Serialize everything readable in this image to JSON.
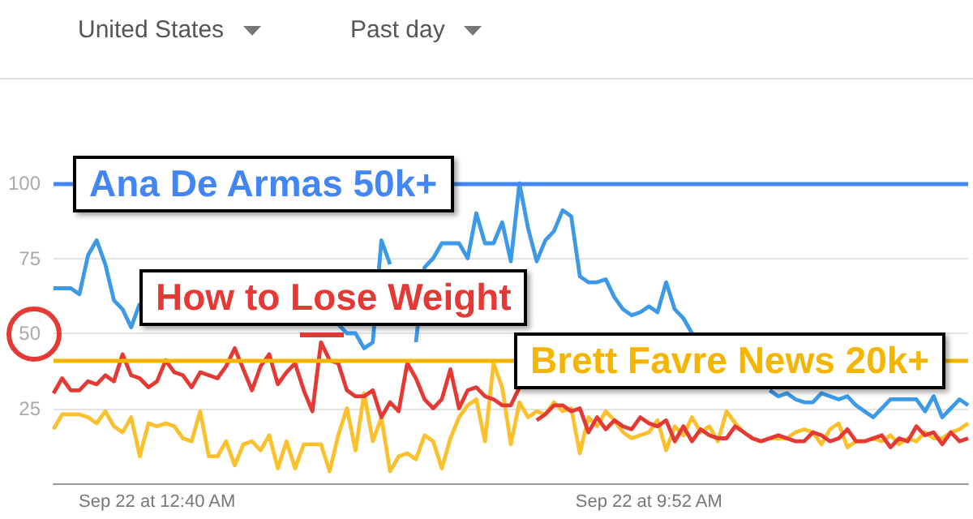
{
  "chart_data": {
    "type": "line",
    "categories": [
      null,
      null,
      null,
      null,
      null,
      null,
      null,
      null,
      null,
      null,
      null,
      null,
      "Sep 22 at 12:40 AM",
      null,
      null,
      null,
      null,
      null,
      null,
      null,
      null,
      null,
      null,
      null,
      null,
      null,
      null,
      null,
      null,
      null,
      null,
      null,
      null,
      null,
      null,
      null,
      null,
      null,
      null,
      null,
      null,
      null,
      null,
      null,
      null,
      null,
      null,
      null,
      null,
      null,
      null,
      null,
      null,
      null,
      null,
      null,
      null,
      null,
      null,
      null,
      null,
      null,
      null,
      null,
      null,
      null,
      null,
      null,
      null,
      "Sep 22 at 9:52 AM",
      null,
      null,
      null,
      null,
      null,
      null,
      null,
      null,
      null,
      null,
      null,
      null,
      null,
      null,
      null,
      null,
      null,
      null,
      null,
      null,
      null,
      null,
      null,
      null,
      null,
      null,
      null,
      null,
      null,
      null,
      null,
      null,
      null,
      null,
      null,
      null,
      null
    ],
    "series": [
      {
        "color": "#3c99e8",
        "values": [
          65,
          65,
          65,
          63,
          76,
          81,
          73,
          61,
          58,
          52,
          60,
          null,
          null,
          null,
          null,
          null,
          null,
          null,
          null,
          null,
          null,
          null,
          null,
          null,
          null,
          null,
          null,
          null,
          null,
          null,
          null,
          null,
          null,
          53,
          50,
          50,
          45,
          47,
          81,
          73,
          null,
          null,
          47,
          72,
          75,
          80,
          80,
          80,
          75,
          90,
          80,
          80,
          87,
          74,
          100,
          85,
          74,
          81,
          84,
          91,
          89,
          69,
          67,
          67,
          68,
          62,
          58,
          56,
          57,
          59,
          57,
          67,
          58,
          55,
          50,
          null,
          null,
          null,
          null,
          null,
          null,
          null,
          null,
          31,
          29,
          30,
          28,
          27,
          27,
          30,
          29,
          28,
          29,
          26,
          24,
          22,
          25,
          28,
          28,
          28,
          28,
          24,
          29,
          22,
          25,
          28,
          26
        ]
      },
      {
        "color": "#e53935",
        "values": [
          30,
          35,
          31,
          31,
          34,
          33,
          36,
          34,
          43,
          36,
          35,
          32,
          34,
          41,
          37,
          36,
          32,
          37,
          36,
          35,
          39,
          45,
          38,
          31,
          39,
          43,
          33,
          37,
          40,
          31,
          24,
          47,
          41,
          40,
          31,
          29,
          29,
          31,
          22,
          27,
          24,
          40,
          35,
          28,
          25,
          28,
          38,
          25,
          31,
          32,
          29,
          28,
          26,
          26,
          32,
          null,
          21,
          23,
          26,
          26,
          24,
          25,
          17,
          22,
          18,
          21,
          19,
          18,
          22,
          20,
          19,
          21,
          14,
          19,
          14,
          18,
          16,
          15,
          15,
          19,
          17,
          15,
          14,
          15,
          16,
          15,
          14,
          14,
          17,
          16,
          14,
          15,
          18,
          14,
          14,
          15,
          16,
          12,
          15,
          14,
          19,
          16,
          17,
          13,
          17,
          14,
          15
        ]
      },
      {
        "color": "#fbc02d",
        "values": [
          18,
          23,
          23,
          23,
          22,
          20,
          24,
          19,
          17,
          22,
          9,
          20,
          19,
          20,
          19,
          15,
          14,
          24,
          9,
          9,
          14,
          6,
          13,
          14,
          11,
          16,
          5,
          14,
          5,
          13,
          13,
          13,
          4,
          16,
          25,
          11,
          30,
          14,
          22,
          4,
          9,
          10,
          8,
          16,
          14,
          5,
          15,
          22,
          26,
          28,
          14,
          40,
          32,
          13,
          27,
          22,
          24,
          23,
          27,
          24,
          25,
          10,
          22,
          19,
          24,
          21,
          17,
          15,
          16,
          17,
          21,
          11,
          19,
          16,
          22,
          17,
          19,
          14,
          24,
          20,
          17,
          15,
          14,
          15,
          15,
          15,
          17,
          18,
          17,
          13,
          18,
          20,
          12,
          14,
          14,
          15,
          14,
          16,
          13,
          15,
          14,
          17,
          15,
          15,
          17,
          18,
          20
        ]
      }
    ],
    "ylim": [
      0,
      100
    ],
    "yticks": [
      25,
      50,
      75,
      100
    ],
    "grid": "y",
    "marker": "none",
    "line_style": "solid",
    "ref_lines": [
      {
        "axis": "y",
        "value": 100,
        "label": "Ana De Armas 50k+",
        "color": "#4285f4"
      },
      {
        "axis": "y",
        "value": 41,
        "label": "Brett Favre News 20k+",
        "color": "#f4b400"
      }
    ],
    "annotations": [
      "United States",
      "Past day",
      "How to Lose Weight"
    ]
  }
}
